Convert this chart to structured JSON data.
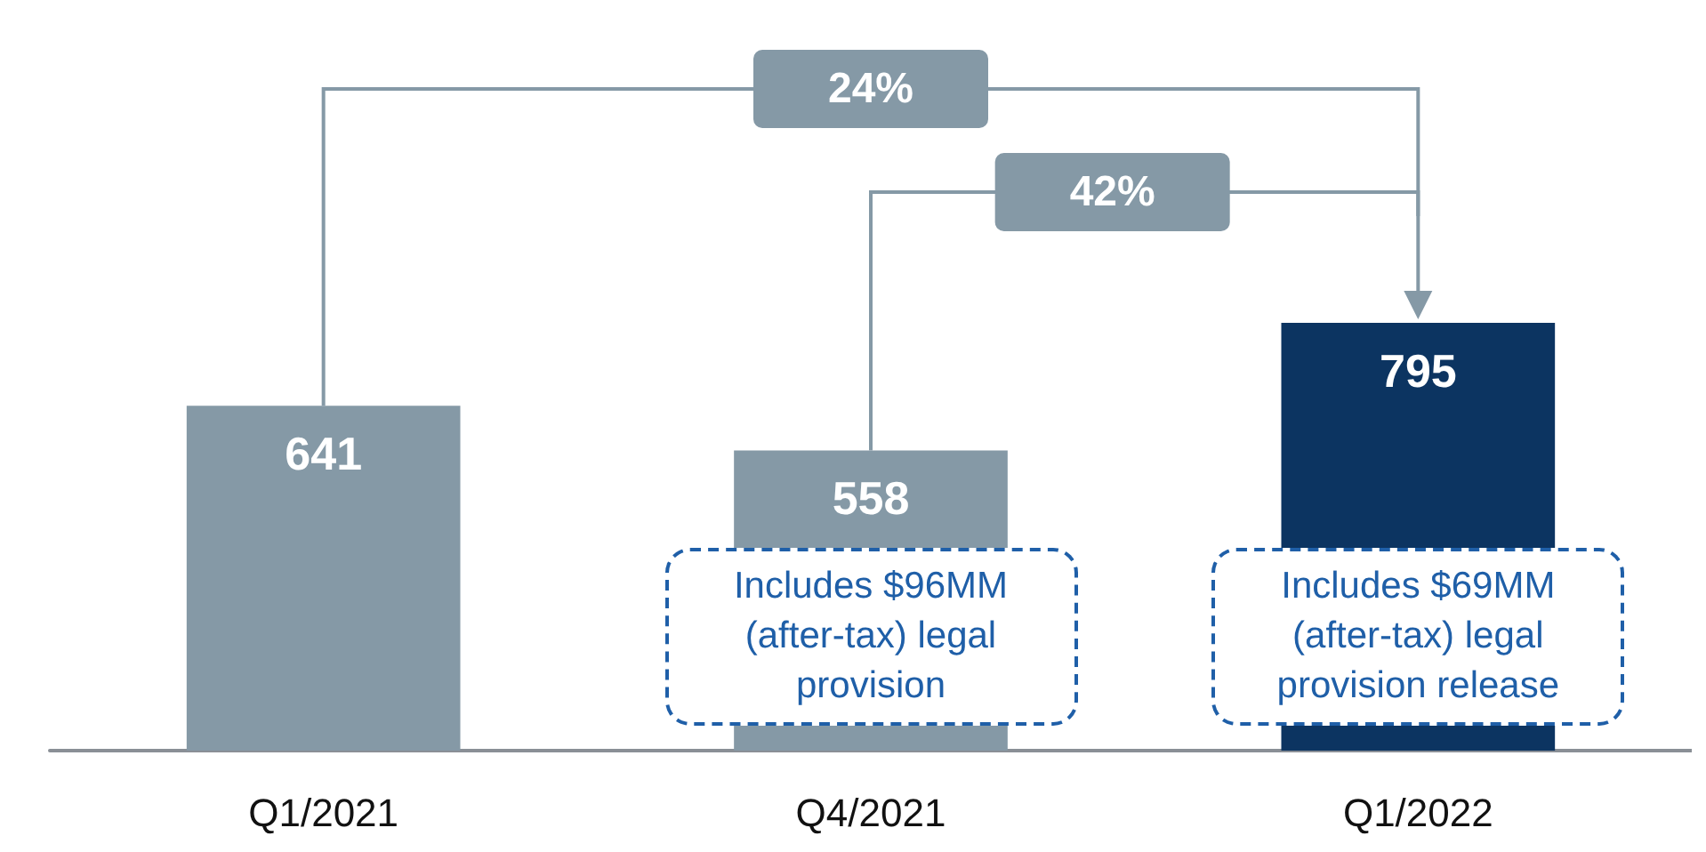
{
  "chart_data": {
    "type": "bar",
    "categories": [
      "Q1/2021",
      "Q4/2021",
      "Q1/2022"
    ],
    "values": [
      641,
      558,
      795
    ],
    "colors": [
      "#8599a6",
      "#8599a6",
      "#0c3461"
    ],
    "data_labels": true,
    "annotations": [
      "24%",
      "42%",
      "Includes $96MM\n(after-tax) legal\nprovision",
      "Includes $69MM\n(after-tax) legal\nprovision release"
    ]
  }
}
